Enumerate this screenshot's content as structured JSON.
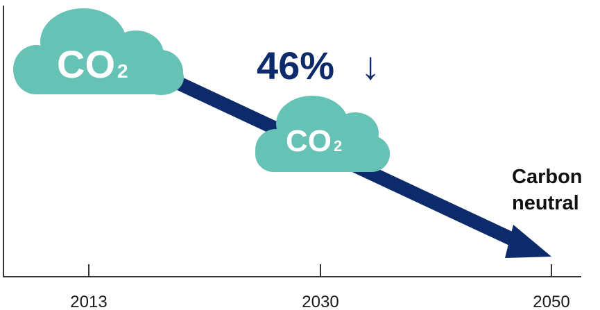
{
  "colors": {
    "arrow": "#0d2a6b",
    "cloud": "#66c2b4",
    "axis": "#333333",
    "cloud_text": "#ffffff"
  },
  "timeline": {
    "years": [
      "2013",
      "2030",
      "2050"
    ]
  },
  "clouds": [
    {
      "main": "CO",
      "sub": "2",
      "year": "2013"
    },
    {
      "main": "CO",
      "sub": "2",
      "year": "2030"
    }
  ],
  "reduction": {
    "value": "46%",
    "arrow_glyph": "↓"
  },
  "goal": {
    "line1": "Carbon",
    "line2": "neutral"
  }
}
